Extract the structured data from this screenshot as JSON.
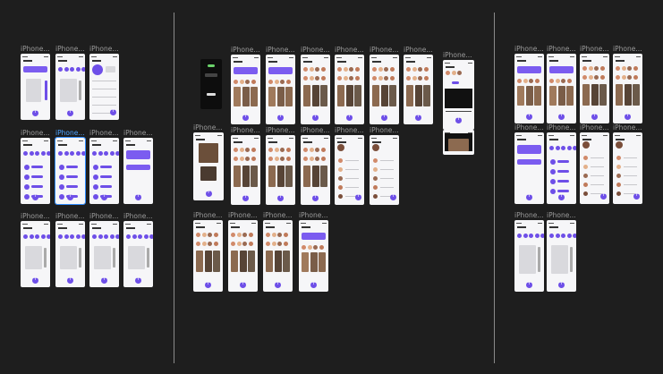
{
  "canvas": {
    "background": "#1e1e1e",
    "accent": "#6e4fe8",
    "selection_color": "#2f8cff"
  },
  "frame_label": "iPhone...",
  "selected_frame_label": "iPhone...",
  "icons": {
    "add": "plus-icon",
    "profile": "avatar-icon"
  }
}
